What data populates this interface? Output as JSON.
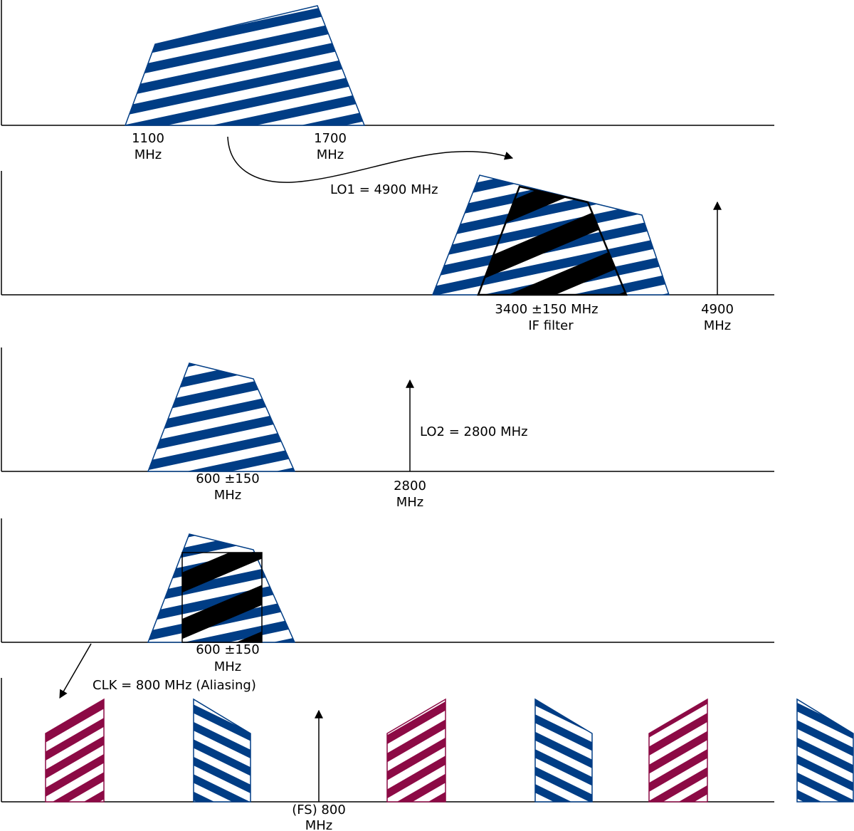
{
  "colors": {
    "blue": "#003d85",
    "red": "#8c0a45",
    "black": "#000000",
    "white": "#ffffff"
  },
  "panel1": {
    "band_start": "1100",
    "band_start_unit": "MHz",
    "band_end": "1700",
    "band_end_unit": "MHz"
  },
  "mix1": {
    "label": "LO1 = 4900 MHz"
  },
  "panel2": {
    "filter_label": "3400 ±150 MHz",
    "filter_sub": "IF filter",
    "lo_value": "4900",
    "lo_unit": "MHz"
  },
  "panel3": {
    "band_label": "600 ±150",
    "band_unit": "MHz",
    "lo_label": "LO2 = 2800 MHz",
    "lo_value": "2800",
    "lo_unit": "MHz"
  },
  "panel4": {
    "band_label": "600 ±150",
    "band_unit": "MHz"
  },
  "sampling": {
    "label": "CLK = 800 MHz (Aliasing)"
  },
  "panel5": {
    "fs_label": "(FS) 800",
    "fs_unit": "MHz"
  }
}
